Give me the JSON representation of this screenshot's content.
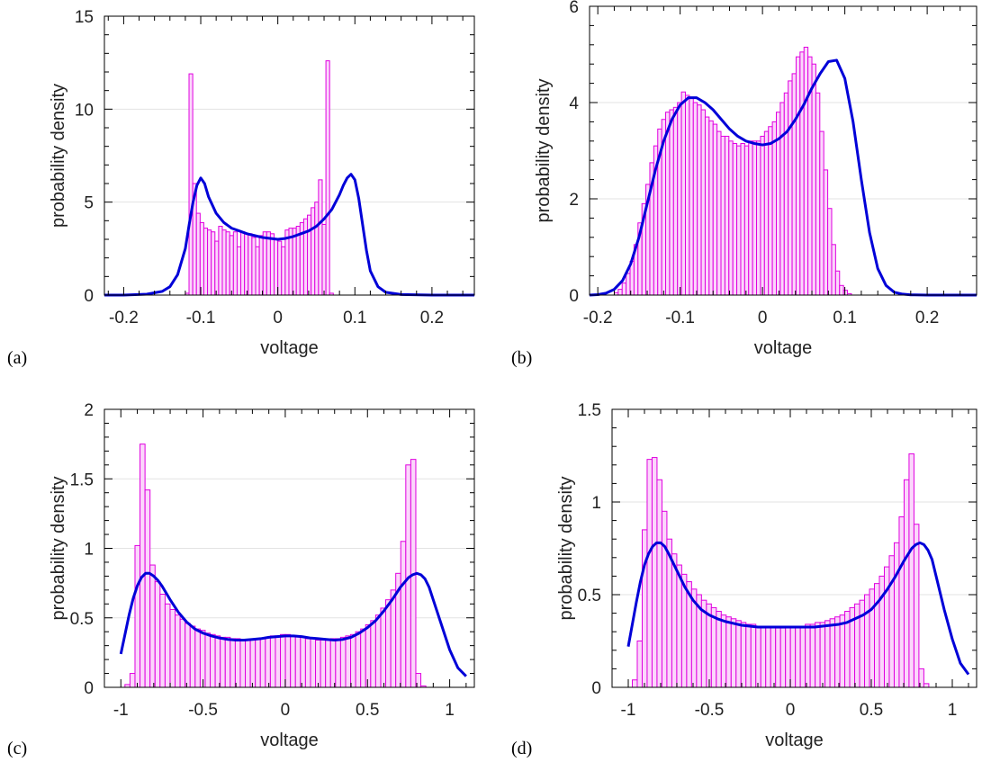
{
  "figure": {
    "colors": {
      "bar_stroke": "#e000e0",
      "bar_fill": "#fbd6fb",
      "curve": "#0000d8",
      "grid": "#e3e3e3",
      "axis": "#000000"
    }
  },
  "chart_data": [
    {
      "panel": "(a)",
      "type": "bar",
      "xlabel": "voltage",
      "ylabel": "probability density",
      "xlim": [
        -0.225,
        0.255
      ],
      "ylim": [
        0,
        15
      ],
      "xticks": [
        -0.2,
        -0.1,
        0,
        0.1,
        0.2
      ],
      "xtick_labels": [
        "-0.2",
        "-0.1",
        "0",
        "0.1",
        "0.2"
      ],
      "yticks": [
        0,
        5,
        10,
        15
      ],
      "ytick_labels": [
        "0",
        "5",
        "10",
        "15"
      ],
      "grid": true,
      "histogram": {
        "bin_start": -0.12,
        "bin_width": 0.0048,
        "values": [
          0.1,
          11.9,
          6.0,
          4.4,
          3.9,
          3.6,
          3.5,
          3.4,
          2.9,
          3.7,
          3.5,
          3.4,
          3.2,
          3.4,
          2.6,
          3.4,
          3.3,
          3.3,
          3.1,
          2.6,
          3.2,
          3.4,
          3.4,
          3.3,
          3.0,
          2.9,
          2.6,
          3.5,
          3.6,
          3.6,
          3.7,
          3.9,
          4.1,
          4.3,
          4.7,
          5.0,
          6.2,
          3.8,
          12.6,
          0.1
        ]
      },
      "density_curve": {
        "x": [
          -0.225,
          -0.2,
          -0.17,
          -0.15,
          -0.14,
          -0.13,
          -0.12,
          -0.115,
          -0.11,
          -0.105,
          -0.1,
          -0.095,
          -0.09,
          -0.08,
          -0.07,
          -0.06,
          -0.05,
          -0.04,
          -0.03,
          -0.02,
          -0.01,
          0,
          0.01,
          0.02,
          0.03,
          0.04,
          0.05,
          0.06,
          0.07,
          0.08,
          0.085,
          0.09,
          0.095,
          0.1,
          0.105,
          0.11,
          0.115,
          0.12,
          0.13,
          0.14,
          0.16,
          0.2,
          0.255
        ],
        "y": [
          0,
          0,
          0.05,
          0.2,
          0.45,
          1.1,
          2.5,
          3.8,
          5.0,
          5.9,
          6.3,
          6.0,
          5.3,
          4.4,
          3.9,
          3.6,
          3.45,
          3.3,
          3.2,
          3.1,
          3.05,
          3.0,
          3.05,
          3.15,
          3.3,
          3.45,
          3.7,
          4.1,
          4.6,
          5.4,
          5.9,
          6.3,
          6.5,
          6.2,
          5.2,
          3.8,
          2.4,
          1.3,
          0.45,
          0.15,
          0.03,
          0,
          0
        ]
      }
    },
    {
      "panel": "(b)",
      "type": "bar",
      "xlabel": "voltage",
      "ylabel": "probability density",
      "xlim": [
        -0.21,
        0.26
      ],
      "ylim": [
        0,
        6
      ],
      "xticks": [
        -0.2,
        -0.1,
        0,
        0.1,
        0.2
      ],
      "xtick_labels": [
        "-0.2",
        "-0.1",
        "0",
        "0.1",
        "0.2"
      ],
      "yticks": [
        0,
        2,
        4,
        6
      ],
      "ytick_labels": [
        "0",
        "2",
        "4",
        "6"
      ],
      "grid": true,
      "histogram": {
        "bin_start": -0.18,
        "bin_width": 0.0048,
        "values": [
          0.05,
          0.12,
          0.25,
          0.45,
          0.7,
          1.05,
          1.5,
          1.9,
          2.3,
          2.75,
          3.1,
          3.45,
          3.65,
          3.8,
          3.85,
          3.9,
          4.0,
          4.22,
          4.15,
          4.1,
          4.0,
          3.95,
          3.85,
          3.7,
          3.62,
          3.55,
          3.4,
          3.3,
          3.3,
          3.2,
          3.15,
          3.1,
          3.15,
          3.1,
          3.2,
          3.2,
          3.2,
          3.3,
          3.4,
          3.5,
          3.6,
          3.8,
          4.0,
          4.2,
          4.45,
          4.6,
          4.95,
          5.05,
          5.15,
          4.95,
          4.8,
          4.2,
          3.4,
          2.6,
          1.8,
          1.05,
          0.5,
          0.2,
          0.1,
          0.03
        ]
      },
      "density_curve": {
        "x": [
          -0.21,
          -0.2,
          -0.19,
          -0.18,
          -0.17,
          -0.16,
          -0.15,
          -0.14,
          -0.13,
          -0.12,
          -0.11,
          -0.1,
          -0.09,
          -0.08,
          -0.07,
          -0.06,
          -0.05,
          -0.04,
          -0.03,
          -0.02,
          -0.01,
          0,
          0.01,
          0.02,
          0.03,
          0.04,
          0.05,
          0.06,
          0.07,
          0.08,
          0.09,
          0.1,
          0.11,
          0.12,
          0.13,
          0.14,
          0.15,
          0.16,
          0.17,
          0.18,
          0.2,
          0.26
        ],
        "y": [
          0,
          0.01,
          0.04,
          0.12,
          0.3,
          0.65,
          1.2,
          1.9,
          2.6,
          3.2,
          3.65,
          3.95,
          4.1,
          4.1,
          4.0,
          3.85,
          3.65,
          3.45,
          3.3,
          3.2,
          3.15,
          3.12,
          3.15,
          3.25,
          3.4,
          3.65,
          3.95,
          4.3,
          4.6,
          4.85,
          4.88,
          4.5,
          3.6,
          2.4,
          1.3,
          0.55,
          0.2,
          0.06,
          0.02,
          0.005,
          0,
          0
        ]
      }
    },
    {
      "panel": "(c)",
      "type": "bar",
      "xlabel": "voltage",
      "ylabel": "probability density",
      "xlim": [
        -1.1,
        1.15
      ],
      "ylim": [
        0,
        2
      ],
      "xticks": [
        -1,
        -0.5,
        0,
        0.5,
        1
      ],
      "xtick_labels": [
        "-1",
        "-0.5",
        "0",
        "0.5",
        "1"
      ],
      "yticks": [
        0,
        0.5,
        1,
        1.5,
        2
      ],
      "ytick_labels": [
        "0",
        "0.5",
        "1",
        "1.5",
        "2"
      ],
      "grid": true,
      "histogram": {
        "bin_start": -0.975,
        "bin_width": 0.0305,
        "values": [
          0.02,
          0.1,
          1.02,
          1.75,
          1.42,
          0.88,
          0.76,
          0.67,
          0.6,
          0.56,
          0.52,
          0.49,
          0.46,
          0.44,
          0.42,
          0.41,
          0.39,
          0.38,
          0.37,
          0.36,
          0.36,
          0.35,
          0.35,
          0.34,
          0.34,
          0.34,
          0.35,
          0.35,
          0.36,
          0.37,
          0.37,
          0.38,
          0.38,
          0.37,
          0.37,
          0.36,
          0.35,
          0.35,
          0.34,
          0.34,
          0.34,
          0.35,
          0.35,
          0.36,
          0.37,
          0.38,
          0.4,
          0.42,
          0.45,
          0.48,
          0.52,
          0.57,
          0.63,
          0.7,
          0.82,
          1.05,
          1.6,
          1.64,
          0.1,
          0.01
        ]
      },
      "density_curve": {
        "x": [
          -1.0,
          -0.975,
          -0.95,
          -0.925,
          -0.9,
          -0.875,
          -0.85,
          -0.825,
          -0.8,
          -0.775,
          -0.75,
          -0.7,
          -0.65,
          -0.6,
          -0.55,
          -0.5,
          -0.45,
          -0.4,
          -0.35,
          -0.3,
          -0.25,
          -0.2,
          -0.15,
          -0.1,
          -0.05,
          0,
          0.05,
          0.1,
          0.15,
          0.2,
          0.25,
          0.3,
          0.35,
          0.4,
          0.45,
          0.5,
          0.55,
          0.6,
          0.65,
          0.7,
          0.75,
          0.775,
          0.8,
          0.825,
          0.85,
          0.875,
          0.9,
          0.95,
          1.0,
          1.05,
          1.1
        ],
        "y": [
          0.24,
          0.38,
          0.52,
          0.64,
          0.73,
          0.79,
          0.82,
          0.82,
          0.8,
          0.77,
          0.73,
          0.63,
          0.54,
          0.47,
          0.42,
          0.39,
          0.37,
          0.355,
          0.345,
          0.34,
          0.34,
          0.345,
          0.35,
          0.36,
          0.365,
          0.37,
          0.37,
          0.365,
          0.355,
          0.35,
          0.345,
          0.34,
          0.345,
          0.36,
          0.39,
          0.43,
          0.48,
          0.55,
          0.63,
          0.72,
          0.79,
          0.81,
          0.82,
          0.81,
          0.78,
          0.72,
          0.63,
          0.45,
          0.27,
          0.14,
          0.08
        ]
      }
    },
    {
      "panel": "(d)",
      "type": "bar",
      "xlabel": "voltage",
      "ylabel": "probability density",
      "xlim": [
        -1.1,
        1.15
      ],
      "ylim": [
        0,
        1.5
      ],
      "xticks": [
        -1,
        -0.5,
        0,
        0.5,
        1
      ],
      "xtick_labels": [
        "-1",
        "-0.5",
        "0",
        "0.5",
        "1"
      ],
      "yticks": [
        0,
        0.5,
        1,
        1.5
      ],
      "ytick_labels": [
        "0",
        "0.5",
        "1",
        "1.5"
      ],
      "grid": true,
      "histogram": {
        "bin_start": -0.975,
        "bin_width": 0.0305,
        "values": [
          0.04,
          0.25,
          0.85,
          1.23,
          1.24,
          1.12,
          0.95,
          0.8,
          0.72,
          0.66,
          0.61,
          0.57,
          0.53,
          0.5,
          0.47,
          0.45,
          0.43,
          0.41,
          0.39,
          0.38,
          0.37,
          0.36,
          0.35,
          0.34,
          0.34,
          0.33,
          0.33,
          0.33,
          0.33,
          0.32,
          0.32,
          0.33,
          0.33,
          0.33,
          0.33,
          0.34,
          0.34,
          0.35,
          0.35,
          0.36,
          0.37,
          0.38,
          0.39,
          0.41,
          0.43,
          0.45,
          0.47,
          0.5,
          0.53,
          0.56,
          0.6,
          0.65,
          0.71,
          0.78,
          0.92,
          1.12,
          1.26,
          0.88,
          0.1,
          0.02
        ]
      },
      "density_curve": {
        "x": [
          -1.0,
          -0.975,
          -0.95,
          -0.925,
          -0.9,
          -0.875,
          -0.85,
          -0.825,
          -0.8,
          -0.775,
          -0.75,
          -0.7,
          -0.65,
          -0.6,
          -0.55,
          -0.5,
          -0.45,
          -0.4,
          -0.35,
          -0.3,
          -0.25,
          -0.2,
          -0.15,
          -0.1,
          -0.05,
          0,
          0.05,
          0.1,
          0.15,
          0.2,
          0.25,
          0.3,
          0.35,
          0.4,
          0.45,
          0.5,
          0.55,
          0.6,
          0.65,
          0.7,
          0.75,
          0.775,
          0.8,
          0.825,
          0.85,
          0.875,
          0.9,
          0.95,
          1.0,
          1.05,
          1.1
        ],
        "y": [
          0.22,
          0.34,
          0.46,
          0.57,
          0.66,
          0.72,
          0.76,
          0.78,
          0.78,
          0.76,
          0.72,
          0.63,
          0.54,
          0.47,
          0.42,
          0.39,
          0.37,
          0.355,
          0.345,
          0.335,
          0.33,
          0.325,
          0.325,
          0.325,
          0.325,
          0.325,
          0.325,
          0.325,
          0.325,
          0.33,
          0.335,
          0.34,
          0.35,
          0.37,
          0.39,
          0.42,
          0.47,
          0.53,
          0.6,
          0.68,
          0.75,
          0.77,
          0.78,
          0.77,
          0.74,
          0.69,
          0.6,
          0.42,
          0.26,
          0.13,
          0.07
        ]
      }
    }
  ]
}
